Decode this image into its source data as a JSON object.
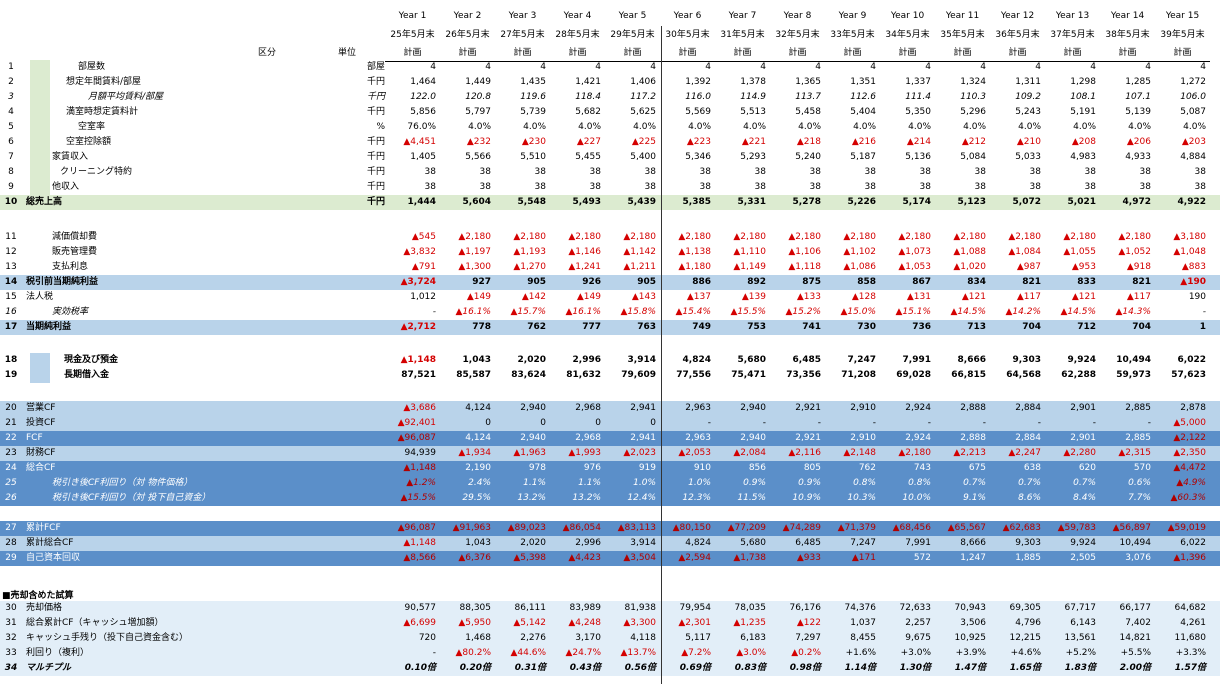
{
  "header": {
    "years": [
      "Year 1",
      "Year 2",
      "Year 3",
      "Year 4",
      "Year 5",
      "Year 6",
      "Year 7",
      "Year 8",
      "Year 9",
      "Year 10",
      "Year 11",
      "Year 12",
      "Year 13",
      "Year 14",
      "Year 15"
    ],
    "periods": [
      "25年5月末",
      "26年5月末",
      "27年5月末",
      "28年5月末",
      "29年5月末",
      "30年5月末",
      "31年5月末",
      "32年5月末",
      "33年5月末",
      "34年5月末",
      "35年5月末",
      "36年5月末",
      "37年5月末",
      "38年5月末",
      "39年5月末"
    ],
    "plan_label": "計画",
    "category_label": "区分",
    "unit_label": "単位"
  },
  "section_title": "■売却含めた試算",
  "rows": [
    {
      "n": "1",
      "label": "部屋数",
      "unit": "部屋",
      "values": [
        "4",
        "4",
        "4",
        "4",
        "4",
        "4",
        "4",
        "4",
        "4",
        "4",
        "4",
        "4",
        "4",
        "4",
        "4"
      ]
    },
    {
      "n": "2",
      "label": "想定年間賃料/部屋",
      "unit": "千円",
      "values": [
        "1,464",
        "1,449",
        "1,435",
        "1,421",
        "1,406",
        "1,392",
        "1,378",
        "1,365",
        "1,351",
        "1,337",
        "1,324",
        "1,311",
        "1,298",
        "1,285",
        "1,272"
      ]
    },
    {
      "n": "3",
      "label": "月額平均賃料/部屋",
      "unit": "千円",
      "values": [
        "122.0",
        "120.8",
        "119.6",
        "118.4",
        "117.2",
        "116.0",
        "114.9",
        "113.7",
        "112.6",
        "111.4",
        "110.3",
        "109.2",
        "108.1",
        "107.1",
        "106.0"
      ]
    },
    {
      "n": "4",
      "label": "満室時想定賃料計",
      "unit": "千円",
      "values": [
        "5,856",
        "5,797",
        "5,739",
        "5,682",
        "5,625",
        "5,569",
        "5,513",
        "5,458",
        "5,404",
        "5,350",
        "5,296",
        "5,243",
        "5,191",
        "5,139",
        "5,087"
      ]
    },
    {
      "n": "5",
      "label": "空室率",
      "unit": "%",
      "values": [
        "76.0%",
        "4.0%",
        "4.0%",
        "4.0%",
        "4.0%",
        "4.0%",
        "4.0%",
        "4.0%",
        "4.0%",
        "4.0%",
        "4.0%",
        "4.0%",
        "4.0%",
        "4.0%",
        "4.0%"
      ]
    },
    {
      "n": "6",
      "label": "空室控除額",
      "unit": "千円",
      "values": [
        "▲4,451",
        "▲232",
        "▲230",
        "▲227",
        "▲225",
        "▲223",
        "▲221",
        "▲218",
        "▲216",
        "▲214",
        "▲212",
        "▲210",
        "▲208",
        "▲206",
        "▲203"
      ]
    },
    {
      "n": "7",
      "label": "家賃収入",
      "unit": "千円",
      "values": [
        "1,405",
        "5,566",
        "5,510",
        "5,455",
        "5,400",
        "5,346",
        "5,293",
        "5,240",
        "5,187",
        "5,136",
        "5,084",
        "5,033",
        "4,983",
        "4,933",
        "4,884"
      ]
    },
    {
      "n": "8",
      "label": "クリーニング特約",
      "unit": "千円",
      "values": [
        "38",
        "38",
        "38",
        "38",
        "38",
        "38",
        "38",
        "38",
        "38",
        "38",
        "38",
        "38",
        "38",
        "38",
        "38"
      ]
    },
    {
      "n": "9",
      "label": "他収入",
      "unit": "千円",
      "values": [
        "38",
        "38",
        "38",
        "38",
        "38",
        "38",
        "38",
        "38",
        "38",
        "38",
        "38",
        "38",
        "38",
        "38",
        "38"
      ]
    },
    {
      "n": "10",
      "label": "総売上高",
      "unit": "千円",
      "values": [
        "1,444",
        "5,604",
        "5,548",
        "5,493",
        "5,439",
        "5,385",
        "5,331",
        "5,278",
        "5,226",
        "5,174",
        "5,123",
        "5,072",
        "5,021",
        "4,972",
        "4,922"
      ]
    },
    {
      "n": "11",
      "label": "減価償却費",
      "unit": "",
      "values": [
        "▲545",
        "▲2,180",
        "▲2,180",
        "▲2,180",
        "▲2,180",
        "▲2,180",
        "▲2,180",
        "▲2,180",
        "▲2,180",
        "▲2,180",
        "▲2,180",
        "▲2,180",
        "▲2,180",
        "▲2,180",
        "▲3,180"
      ]
    },
    {
      "n": "12",
      "label": "販売管理費",
      "unit": "",
      "values": [
        "▲3,832",
        "▲1,197",
        "▲1,193",
        "▲1,146",
        "▲1,142",
        "▲1,138",
        "▲1,110",
        "▲1,106",
        "▲1,102",
        "▲1,073",
        "▲1,088",
        "▲1,084",
        "▲1,055",
        "▲1,052",
        "▲1,048"
      ]
    },
    {
      "n": "13",
      "label": "支払利息",
      "unit": "",
      "values": [
        "▲791",
        "▲1,300",
        "▲1,270",
        "▲1,241",
        "▲1,211",
        "▲1,180",
        "▲1,149",
        "▲1,118",
        "▲1,086",
        "▲1,053",
        "▲1,020",
        "▲987",
        "▲953",
        "▲918",
        "▲883"
      ]
    },
    {
      "n": "14",
      "label": "税引前当期純利益",
      "unit": "",
      "values": [
        "▲3,724",
        "927",
        "905",
        "926",
        "905",
        "886",
        "892",
        "875",
        "858",
        "867",
        "834",
        "821",
        "833",
        "821",
        "▲190"
      ]
    },
    {
      "n": "15",
      "label": "法人税",
      "unit": "",
      "values": [
        "1,012",
        "▲149",
        "▲142",
        "▲149",
        "▲143",
        "▲137",
        "▲139",
        "▲133",
        "▲128",
        "▲131",
        "▲121",
        "▲117",
        "▲121",
        "▲117",
        "190"
      ]
    },
    {
      "n": "16",
      "label": "実効税率",
      "unit": "",
      "values": [
        "-",
        "▲16.1%",
        "▲15.7%",
        "▲16.1%",
        "▲15.8%",
        "▲15.4%",
        "▲15.5%",
        "▲15.2%",
        "▲15.0%",
        "▲15.1%",
        "▲14.5%",
        "▲14.2%",
        "▲14.5%",
        "▲14.3%",
        "-"
      ]
    },
    {
      "n": "17",
      "label": "当期純利益",
      "unit": "",
      "values": [
        "▲2,712",
        "778",
        "762",
        "777",
        "763",
        "749",
        "753",
        "741",
        "730",
        "736",
        "713",
        "704",
        "712",
        "704",
        "1"
      ]
    },
    {
      "n": "18",
      "label": "現金及び預金",
      "unit": "",
      "values": [
        "▲1,148",
        "1,043",
        "2,020",
        "2,996",
        "3,914",
        "4,824",
        "5,680",
        "6,485",
        "7,247",
        "7,991",
        "8,666",
        "9,303",
        "9,924",
        "10,494",
        "6,022"
      ]
    },
    {
      "n": "19",
      "label": "長期借入金",
      "unit": "",
      "values": [
        "87,521",
        "85,587",
        "83,624",
        "81,632",
        "79,609",
        "77,556",
        "75,471",
        "73,356",
        "71,208",
        "69,028",
        "66,815",
        "64,568",
        "62,288",
        "59,973",
        "57,623"
      ]
    },
    {
      "n": "20",
      "label": "営業CF",
      "unit": "",
      "values": [
        "▲3,686",
        "4,124",
        "2,940",
        "2,968",
        "2,941",
        "2,963",
        "2,940",
        "2,921",
        "2,910",
        "2,924",
        "2,888",
        "2,884",
        "2,901",
        "2,885",
        "2,878"
      ]
    },
    {
      "n": "21",
      "label": "投資CF",
      "unit": "",
      "values": [
        "▲92,401",
        "0",
        "0",
        "0",
        "0",
        "-",
        "-",
        "-",
        "-",
        "-",
        "-",
        "-",
        "-",
        "-",
        "▲5,000"
      ]
    },
    {
      "n": "22",
      "label": "FCF",
      "unit": "",
      "values": [
        "▲96,087",
        "4,124",
        "2,940",
        "2,968",
        "2,941",
        "2,963",
        "2,940",
        "2,921",
        "2,910",
        "2,924",
        "2,888",
        "2,884",
        "2,901",
        "2,885",
        "▲2,122"
      ]
    },
    {
      "n": "23",
      "label": "財務CF",
      "unit": "",
      "values": [
        "94,939",
        "▲1,934",
        "▲1,963",
        "▲1,993",
        "▲2,023",
        "▲2,053",
        "▲2,084",
        "▲2,116",
        "▲2,148",
        "▲2,180",
        "▲2,213",
        "▲2,247",
        "▲2,280",
        "▲2,315",
        "▲2,350"
      ]
    },
    {
      "n": "24",
      "label": "総合CF",
      "unit": "",
      "values": [
        "▲1,148",
        "2,190",
        "978",
        "976",
        "919",
        "910",
        "856",
        "805",
        "762",
        "743",
        "675",
        "638",
        "620",
        "570",
        "▲4,472"
      ]
    },
    {
      "n": "25",
      "label": "税引き後CF利回り（対 物件価格）",
      "unit": "",
      "values": [
        "▲1.2%",
        "2.4%",
        "1.1%",
        "1.1%",
        "1.0%",
        "1.0%",
        "0.9%",
        "0.9%",
        "0.8%",
        "0.8%",
        "0.7%",
        "0.7%",
        "0.7%",
        "0.6%",
        "▲4.9%"
      ]
    },
    {
      "n": "26",
      "label": "税引き後CF利回り（対 投下自己資金）",
      "unit": "",
      "values": [
        "▲15.5%",
        "29.5%",
        "13.2%",
        "13.2%",
        "12.4%",
        "12.3%",
        "11.5%",
        "10.9%",
        "10.3%",
        "10.0%",
        "9.1%",
        "8.6%",
        "8.4%",
        "7.7%",
        "▲60.3%"
      ]
    },
    {
      "n": "27",
      "label": "累計FCF",
      "unit": "",
      "values": [
        "▲96,087",
        "▲91,963",
        "▲89,023",
        "▲86,054",
        "▲83,113",
        "▲80,150",
        "▲77,209",
        "▲74,289",
        "▲71,379",
        "▲68,456",
        "▲65,567",
        "▲62,683",
        "▲59,783",
        "▲56,897",
        "▲59,019"
      ]
    },
    {
      "n": "28",
      "label": "累計総合CF",
      "unit": "",
      "values": [
        "▲1,148",
        "1,043",
        "2,020",
        "2,996",
        "3,914",
        "4,824",
        "5,680",
        "6,485",
        "7,247",
        "7,991",
        "8,666",
        "9,303",
        "9,924",
        "10,494",
        "6,022"
      ]
    },
    {
      "n": "29",
      "label": "自己資本回収",
      "unit": "",
      "values": [
        "▲8,566",
        "▲6,376",
        "▲5,398",
        "▲4,423",
        "▲3,504",
        "▲2,594",
        "▲1,738",
        "▲933",
        "▲171",
        "572",
        "1,247",
        "1,885",
        "2,505",
        "3,076",
        "▲1,396"
      ]
    },
    {
      "n": "30",
      "label": "売却価格",
      "unit": "",
      "values": [
        "90,577",
        "88,305",
        "86,111",
        "83,989",
        "81,938",
        "79,954",
        "78,035",
        "76,176",
        "74,376",
        "72,633",
        "70,943",
        "69,305",
        "67,717",
        "66,177",
        "64,682"
      ]
    },
    {
      "n": "31",
      "label": "総合累計CF（キャッシュ増加額）",
      "unit": "",
      "values": [
        "▲6,699",
        "▲5,950",
        "▲5,142",
        "▲4,248",
        "▲3,300",
        "▲2,301",
        "▲1,235",
        "▲122",
        "1,037",
        "2,257",
        "3,506",
        "4,796",
        "6,143",
        "7,402",
        "4,261"
      ]
    },
    {
      "n": "32",
      "label": "キャッシュ手残り（投下自己資金含む）",
      "unit": "",
      "values": [
        "720",
        "1,468",
        "2,276",
        "3,170",
        "4,118",
        "5,117",
        "6,183",
        "7,297",
        "8,455",
        "9,675",
        "10,925",
        "12,215",
        "13,561",
        "14,821",
        "11,680"
      ]
    },
    {
      "n": "33",
      "label": "利回り（複利）",
      "unit": "",
      "values": [
        "-",
        "▲80.2%",
        "▲44.6%",
        "▲24.7%",
        "▲13.7%",
        "▲7.2%",
        "▲3.0%",
        "▲0.2%",
        "+1.6%",
        "+3.0%",
        "+3.9%",
        "+4.6%",
        "+5.2%",
        "+5.5%",
        "+3.3%"
      ]
    },
    {
      "n": "34",
      "label": "マルチプル",
      "unit": "",
      "values": [
        "0.10倍",
        "0.20倍",
        "0.31倍",
        "0.43倍",
        "0.56倍",
        "0.69倍",
        "0.83倍",
        "0.98倍",
        "1.14倍",
        "1.30倍",
        "1.47倍",
        "1.65倍",
        "1.83倍",
        "2.00倍",
        "1.57倍"
      ]
    }
  ]
}
